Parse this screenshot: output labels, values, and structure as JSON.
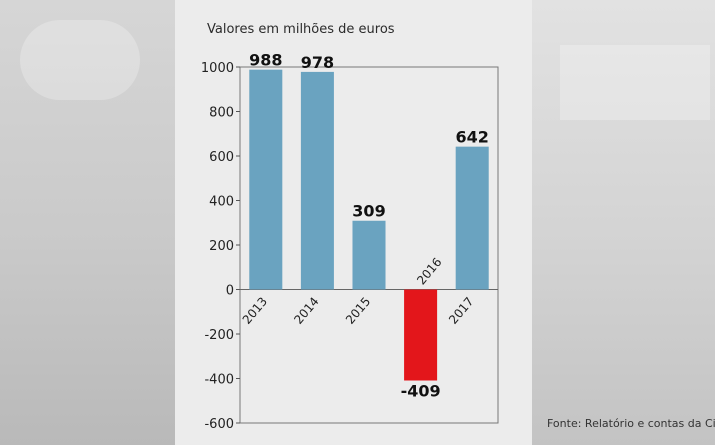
{
  "chart_data": {
    "type": "bar",
    "title": "Valores em milhões de euros",
    "categories": [
      "2013",
      "2014",
      "2015",
      "2016",
      "2017"
    ],
    "values": [
      988,
      978,
      309,
      -409,
      642
    ],
    "data_labels": [
      "988",
      "978",
      "309",
      "-409",
      "642"
    ],
    "ylim": [
      -600,
      1000
    ],
    "yticks": [
      1000,
      800,
      600,
      400,
      200,
      0,
      -200,
      -400,
      -600
    ],
    "grid": false,
    "colors": {
      "positive": "#6aa3c0",
      "negative": "#e3161b"
    }
  },
  "source": "Fonte: Relatório e contas da Ci"
}
